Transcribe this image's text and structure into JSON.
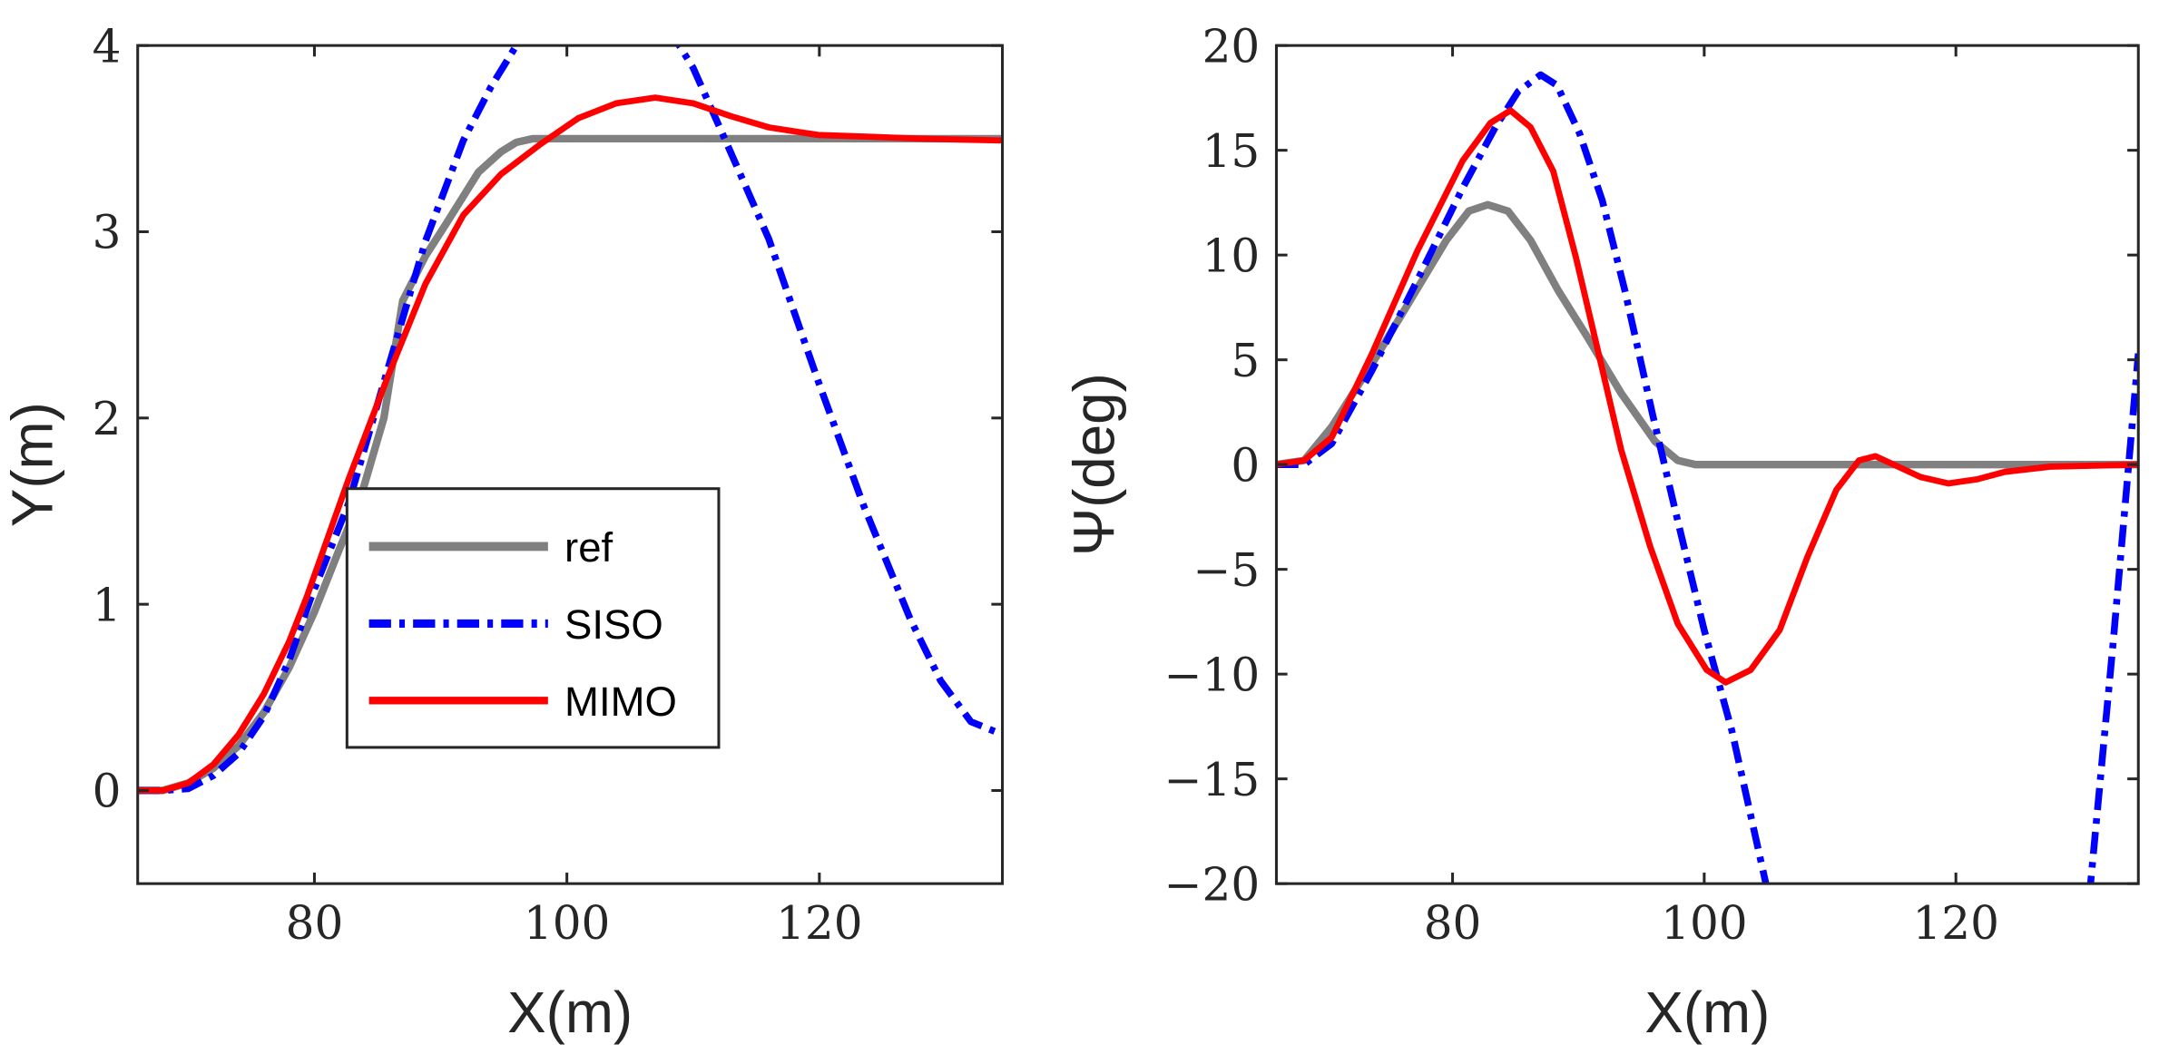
{
  "colors": {
    "ref": "#808080",
    "SISO": "#0000ff",
    "MIMO": "#ff0000",
    "axis": "#262626"
  },
  "chart_data": [
    {
      "type": "line",
      "xlabel": "X(m)",
      "ylabel": "Y(m)",
      "xlim": [
        66,
        134.5
      ],
      "ylim": [
        -0.5,
        4
      ],
      "xticks": [
        80,
        100,
        120
      ],
      "yticks": [
        0,
        1,
        2,
        3,
        4
      ],
      "grid": false,
      "legend": {
        "placement": "center-left",
        "entries": [
          "ref",
          "SISO",
          "MIMO"
        ]
      },
      "series": [
        {
          "name": "ref",
          "style": "solid",
          "x": [
            66,
            68,
            70,
            72,
            74,
            76,
            78,
            80,
            82,
            83.6,
            85.5,
            87,
            88.8,
            90.5,
            91.8,
            93,
            94.8,
            96,
            97.3,
            99,
            134.5
          ],
          "y": [
            0,
            0,
            0.04,
            0.12,
            0.24,
            0.42,
            0.66,
            0.96,
            1.3,
            1.56,
            2.0,
            2.63,
            2.87,
            3.05,
            3.19,
            3.32,
            3.43,
            3.48,
            3.5,
            3.5,
            3.5
          ]
        },
        {
          "name": "SISO",
          "style": "dashdot",
          "x": [
            66,
            68,
            70,
            72,
            74,
            76,
            78,
            79.7,
            82.7,
            85.8,
            88.8,
            91.8,
            94,
            96,
            98,
            100,
            102,
            104,
            106,
            108,
            108.9,
            110,
            112.3,
            116,
            119.9,
            123.5,
            127.2,
            129.6,
            132,
            134.5
          ],
          "y": [
            0,
            0,
            0.01,
            0.08,
            0.2,
            0.4,
            0.7,
            1.03,
            1.54,
            2.26,
            2.95,
            3.49,
            3.78,
            4.0,
            4.2,
            4.38,
            4.46,
            4.44,
            4.3,
            4.1,
            4.0,
            3.88,
            3.53,
            2.96,
            2.2,
            1.53,
            0.92,
            0.59,
            0.37,
            0.3
          ]
        },
        {
          "name": "MIMO",
          "style": "solid",
          "x": [
            66,
            68,
            70,
            72,
            74,
            76,
            78,
            79.4,
            82.7,
            85.8,
            88.8,
            91.8,
            94.8,
            97.9,
            100.9,
            103.9,
            107,
            110,
            113,
            116,
            119.9,
            124,
            128,
            134.5
          ],
          "y": [
            0,
            0,
            0.04,
            0.14,
            0.3,
            0.52,
            0.8,
            1.04,
            1.67,
            2.22,
            2.72,
            3.09,
            3.31,
            3.47,
            3.61,
            3.69,
            3.72,
            3.69,
            3.62,
            3.56,
            3.52,
            3.51,
            3.5,
            3.49
          ]
        }
      ]
    },
    {
      "type": "line",
      "xlabel": "X(m)",
      "ylabel": "Ψ(deg)",
      "xlim": [
        66,
        134.5
      ],
      "ylim": [
        -20,
        20
      ],
      "xticks": [
        80,
        100,
        120
      ],
      "yticks": [
        -20,
        -15,
        -10,
        -5,
        0,
        5,
        10,
        15,
        20
      ],
      "grid": false,
      "series": [
        {
          "name": "ref",
          "style": "solid",
          "x": [
            66,
            68.2,
            70.4,
            74.1,
            76.8,
            79.5,
            81.3,
            82.8,
            84.4,
            86.2,
            88.4,
            90.7,
            93.4,
            96.1,
            97.9,
            99.3,
            134.5
          ],
          "y": [
            0,
            0.2,
            1.8,
            5.3,
            8,
            10.7,
            12.1,
            12.4,
            12.1,
            10.7,
            8.3,
            6.1,
            3.4,
            1.1,
            0.2,
            0,
            0
          ]
        },
        {
          "name": "SISO",
          "style": "dashdot",
          "x": [
            66,
            68.2,
            70.4,
            73.6,
            77.2,
            80.8,
            83.4,
            85.2,
            87,
            88.3,
            90.1,
            91.9,
            93.7,
            95.9,
            97.7,
            100,
            102.2,
            104.9,
            105.5,
            130.3,
            130.7,
            132.5,
            134.5
          ],
          "y": [
            0,
            0,
            1,
            4.5,
            8.8,
            13.2,
            16.1,
            17.8,
            18.6,
            18.1,
            15.8,
            12.6,
            8.3,
            2.4,
            -2.2,
            -7.9,
            -12.7,
            -20,
            -22,
            -22,
            -20,
            -8.5,
            5.3
          ]
        },
        {
          "name": "MIMO",
          "style": "solid",
          "x": [
            66,
            68.2,
            70.4,
            73.6,
            77.2,
            80.8,
            83,
            84.6,
            86.2,
            88,
            89.8,
            91.6,
            93.4,
            95.7,
            97.9,
            100.2,
            101.7,
            103.7,
            106,
            108.2,
            110.5,
            112.3,
            113.6,
            115.4,
            117.2,
            119.4,
            121.7,
            123.9,
            127.5,
            134.5
          ],
          "y": [
            0,
            0.2,
            1.3,
            5.3,
            10.2,
            14.5,
            16.3,
            16.9,
            16.1,
            14,
            9.9,
            5.3,
            0.7,
            -3.9,
            -7.6,
            -9.8,
            -10.4,
            -9.8,
            -7.9,
            -4.4,
            -1.2,
            0.2,
            0.4,
            -0.1,
            -0.6,
            -0.9,
            -0.7,
            -0.35,
            -0.1,
            0
          ]
        }
      ]
    }
  ]
}
